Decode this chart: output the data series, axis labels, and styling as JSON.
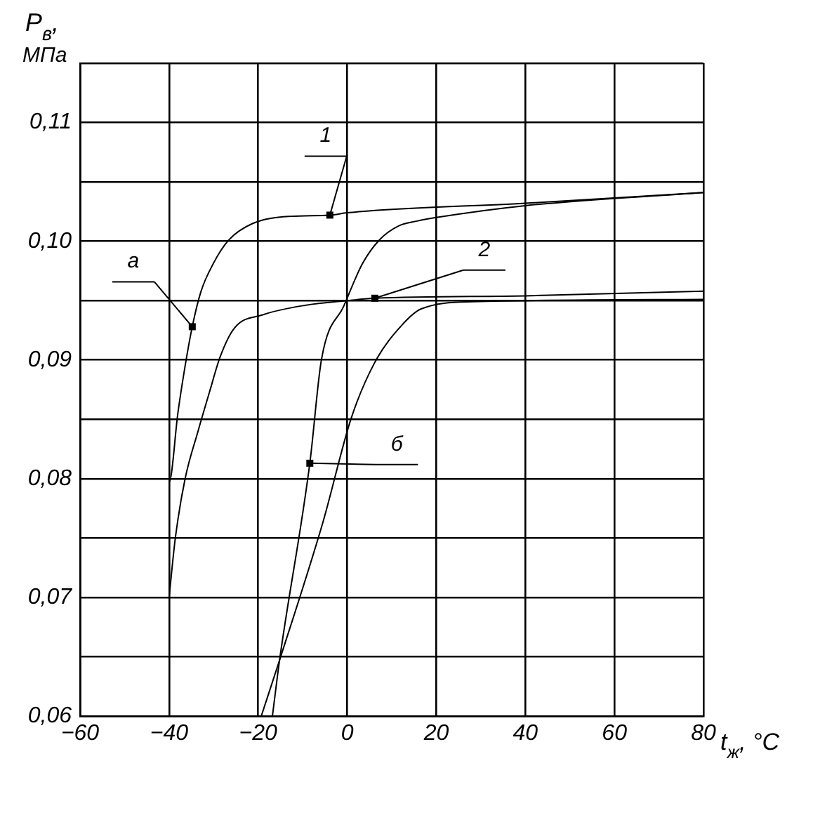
{
  "chart_data": {
    "type": "line",
    "xlabel": "t$_{ж}$, °C",
    "ylabel": "P$_{в}$, МПа",
    "xlim": [
      -60,
      80
    ],
    "xticks": [
      -60,
      -40,
      -20,
      0,
      20,
      40,
      60,
      80
    ],
    "ylim": [
      0.06,
      0.115
    ],
    "yticks": [
      {
        "value": 0.06,
        "label": "0,06"
      },
      {
        "value": 0.065,
        "label": null
      },
      {
        "value": 0.07,
        "label": "0,07"
      },
      {
        "value": 0.075,
        "label": null
      },
      {
        "value": 0.08,
        "label": "0,08"
      },
      {
        "value": 0.085,
        "label": null
      },
      {
        "value": 0.09,
        "label": "0,09"
      },
      {
        "value": 0.095,
        "label": null
      },
      {
        "value": 0.1,
        "label": "0,10"
      },
      {
        "value": 0.105,
        "label": null
      },
      {
        "value": 0.11,
        "label": "0,11"
      },
      {
        "value": 0.115,
        "label": null
      }
    ],
    "grid": true,
    "legend": false,
    "marker": "none",
    "line_style": "solid",
    "series": [
      {
        "color": "#000000",
        "x": [
          -40,
          -40,
          -38,
          -36.4,
          -34.8,
          -32.9,
          -30.1,
          -26.6,
          -21.2,
          -12.7,
          -3.9,
          0,
          40,
          80
        ],
        "values": [
          0.0797,
          0.0797,
          0.0856,
          0.0895,
          0.0928,
          0.0957,
          0.0981,
          0.1001,
          0.1015,
          0.1021,
          0.1022,
          0.1024,
          0.1032,
          0.1041
        ]
      },
      {
        "color": "#000000",
        "x": [
          -40,
          -38.6,
          -36.4,
          -33.5,
          -31,
          -28.5,
          -25.3,
          -19,
          -9.5,
          0,
          6.2,
          40,
          80
        ],
        "values": [
          0.07,
          0.075,
          0.08,
          0.084,
          0.0872,
          0.0903,
          0.0927,
          0.0938,
          0.0946,
          0.095,
          0.0952,
          0.0954,
          0.0958
        ]
      },
      {
        "color": "#000000",
        "x": [
          -16.8,
          -15.2,
          -8.4,
          -5.8,
          -0.7,
          3.4,
          7.2,
          11.6,
          15.7,
          20,
          40,
          80
        ],
        "values": [
          0.06,
          0.0647,
          0.0813,
          0.09,
          0.0946,
          0.0981,
          0.1001,
          0.1013,
          0.1017,
          0.102,
          0.103,
          0.1041
        ]
      },
      {
        "color": "#000000",
        "x": [
          -19.3,
          -15.2,
          -5.4,
          0.9,
          6.2,
          12.2,
          16.6,
          28.2,
          80
        ],
        "values": [
          0.06,
          0.0647,
          0.0764,
          0.0851,
          0.0898,
          0.0929,
          0.0943,
          0.0949,
          0.0951
        ]
      }
    ],
    "annotations": [
      {
        "text": "1",
        "x": -3.9,
        "y": 0.1022
      },
      {
        "text": "2",
        "x": 6.2,
        "y": 0.0952
      },
      {
        "text": "а",
        "x": -34.8,
        "y": 0.0928
      },
      {
        "text": "б",
        "x": -8.4,
        "y": 0.0813
      }
    ]
  }
}
